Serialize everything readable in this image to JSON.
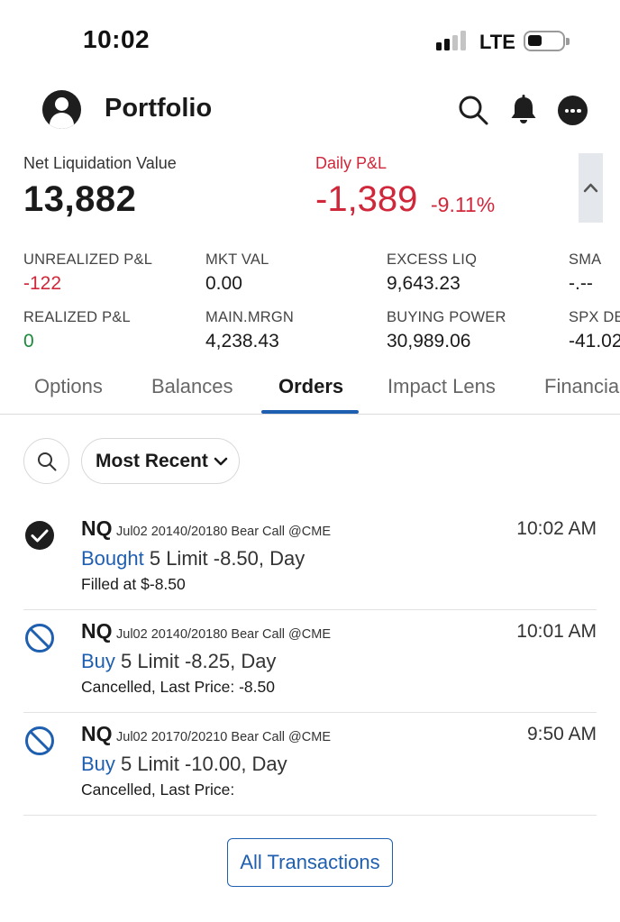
{
  "status_bar": {
    "time": "10:02",
    "network": "LTE",
    "signal_bars_active": 2,
    "signal_bars_total": 4
  },
  "header": {
    "title": "Portfolio",
    "avatar_icon": "user-avatar-icon",
    "icons": [
      "search-icon",
      "bell-icon",
      "more-icon"
    ]
  },
  "summary": {
    "net_liq_label": "Net Liquidation Value",
    "net_liq_value": "13,882",
    "daily_pl_label": "Daily P&L",
    "daily_pl_value": "-1,389",
    "daily_pl_pct": "-9.11%",
    "collapse_icon": "chevron-up-icon"
  },
  "metrics": {
    "unrealized_label": "UNREALIZED P&L",
    "unrealized_value": "-122",
    "mkt_val_label": "MKT VAL",
    "mkt_val_value": "0.00",
    "excess_liq_label": "EXCESS LIQ",
    "excess_liq_value": "9,643.23",
    "sma_label": "SMA",
    "sma_value": "-.--",
    "realized_label": "REALIZED P&L",
    "realized_value": "0",
    "main_mrgn_label": "MAIN.MRGN",
    "main_mrgn_value": "4,238.43",
    "buying_power_label": "BUYING POWER",
    "buying_power_value": "30,989.06",
    "spx_label": "SPX DE",
    "spx_value": "-41.02"
  },
  "tabs": [
    {
      "label": "Options",
      "active": false
    },
    {
      "label": "Balances",
      "active": false
    },
    {
      "label": "Orders",
      "active": true
    },
    {
      "label": "Impact Lens",
      "active": false
    },
    {
      "label": "Financia",
      "active": false
    }
  ],
  "filter": {
    "sort_label": "Most Recent",
    "search_icon": "search-icon",
    "dropdown_icon": "chevron-down-icon"
  },
  "orders": [
    {
      "status": "filled",
      "status_icon": "check-circle-icon",
      "symbol": "NQ",
      "description": "Jul02 20140/20180 Bear Call @CME",
      "time": "10:02 AM",
      "action": "Bought",
      "details": " 5 Limit -8.50, Day",
      "status_text": "Filled at $-8.50"
    },
    {
      "status": "cancelled",
      "status_icon": "cancelled-icon",
      "symbol": "NQ",
      "description": "Jul02 20140/20180 Bear Call @CME",
      "time": "10:01 AM",
      "action": "Buy",
      "details": " 5 Limit -8.25, Day",
      "status_text": "Cancelled, Last Price: -8.50"
    },
    {
      "status": "cancelled",
      "status_icon": "cancelled-icon",
      "symbol": "NQ",
      "description": "Jul02 20170/20210 Bear Call @CME",
      "time": "9:50 AM",
      "action": "Buy",
      "details": " 5 Limit -10.00, Day",
      "status_text": "Cancelled, Last Price:"
    }
  ],
  "all_transactions_label": "All Transactions",
  "colors": {
    "accent_blue": "#1f5fb0",
    "loss_red": "#d0273a",
    "gain_green": "#1b8a3a"
  }
}
